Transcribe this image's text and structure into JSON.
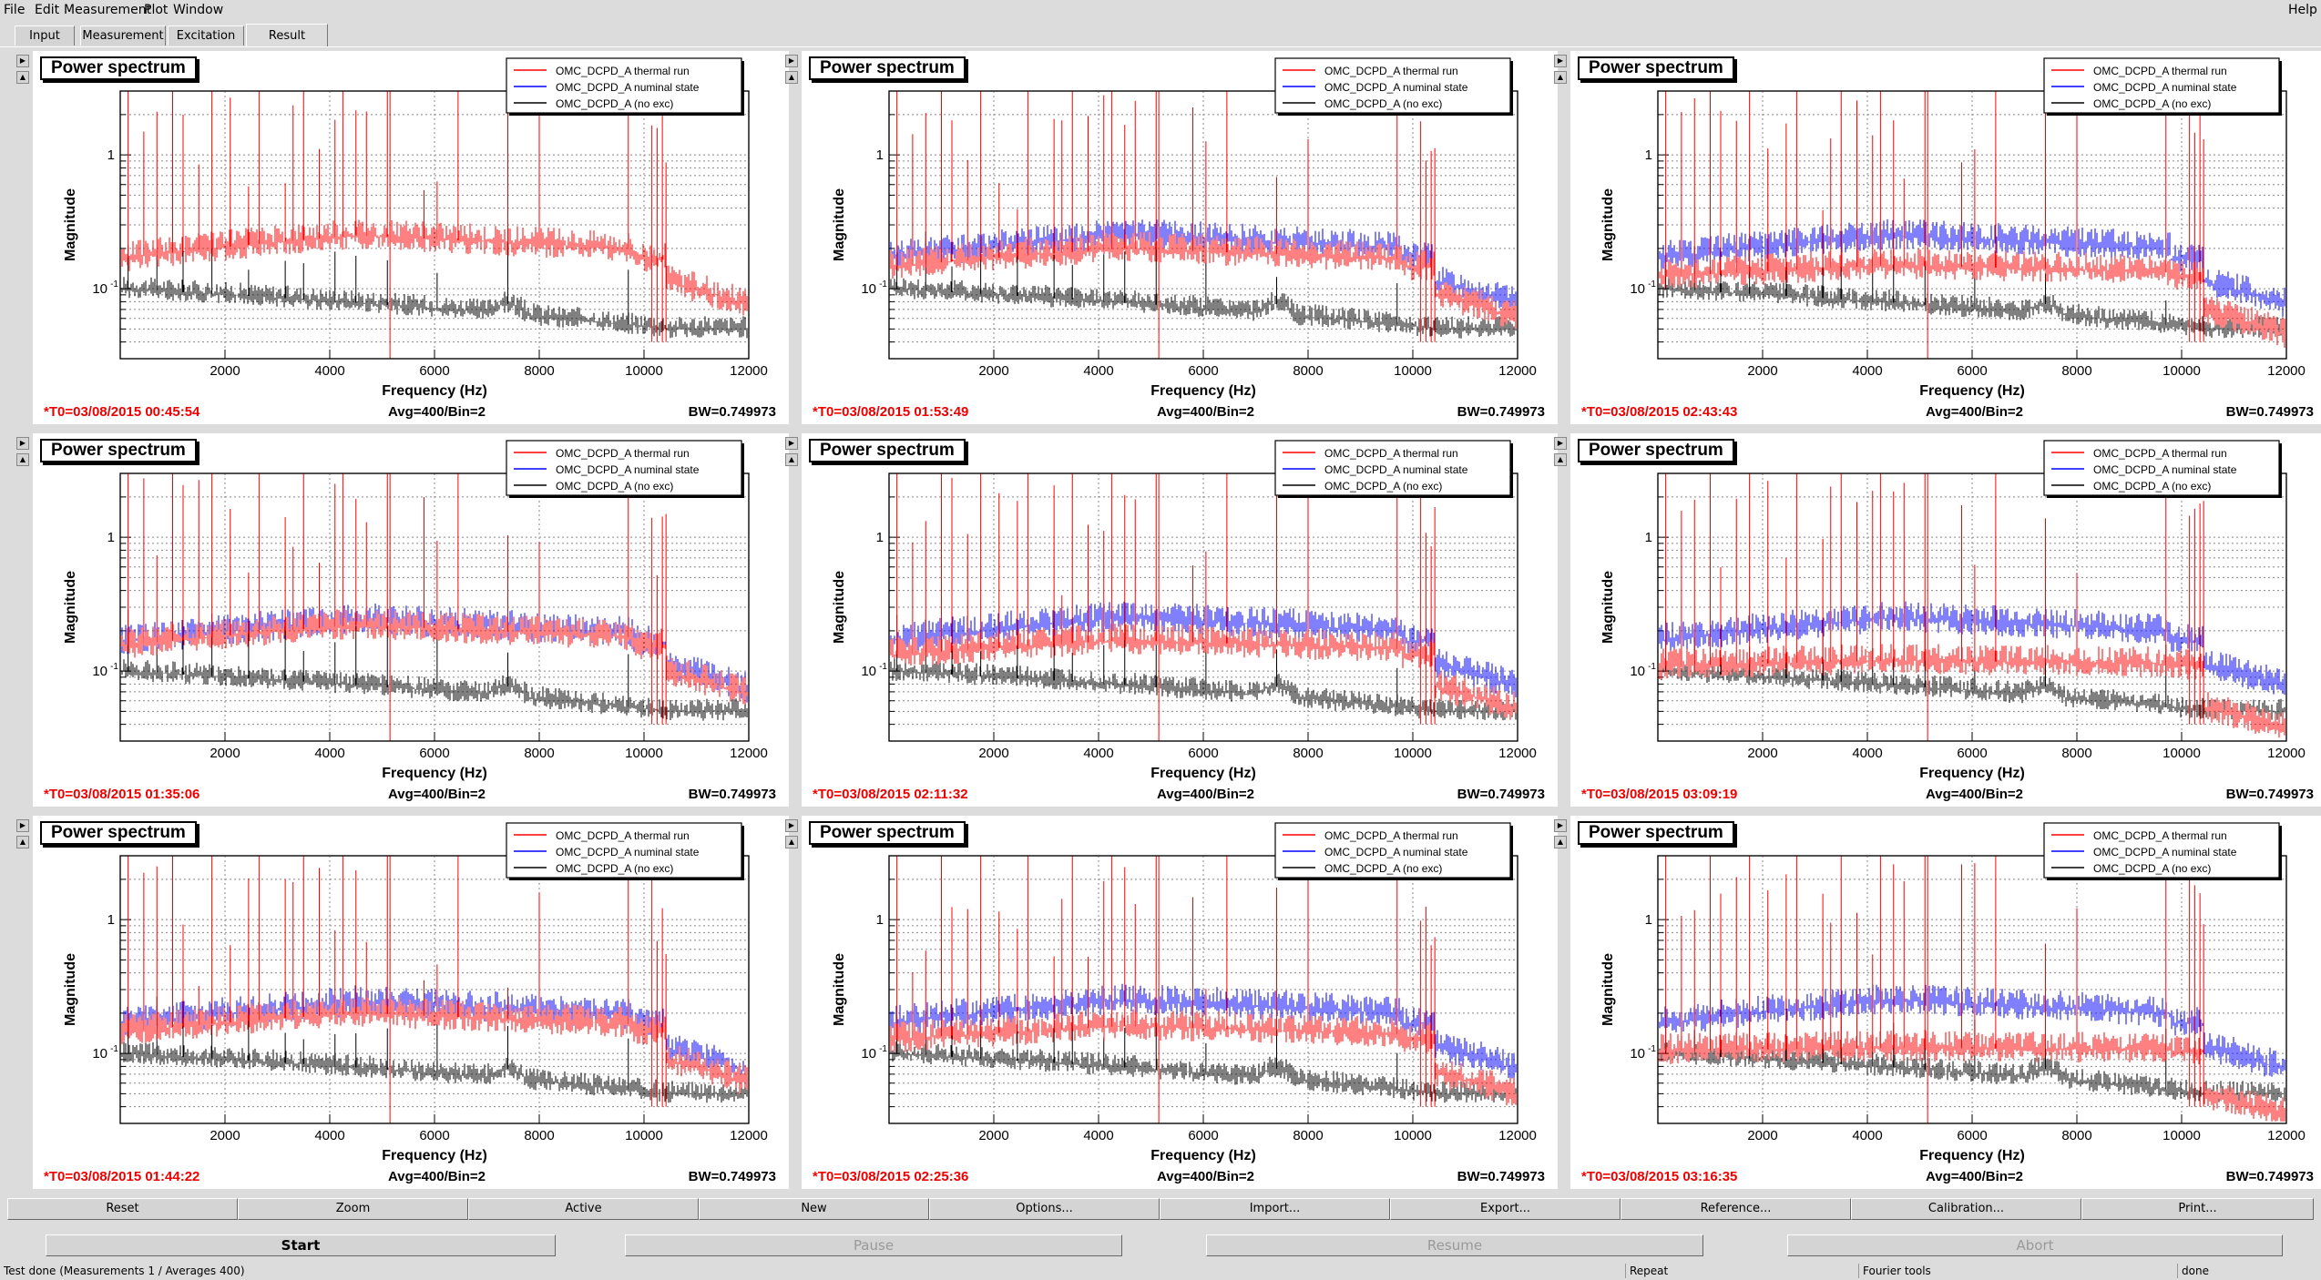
{
  "menu": {
    "file": "File",
    "edit": "Edit",
    "measurement": "Measurement",
    "plot": "Plot",
    "window": "Window",
    "help": "Help"
  },
  "tabs": [
    "Input",
    "Measurement",
    "Excitation",
    "Result"
  ],
  "active_tab": "Result",
  "colors": {
    "thermal": "#ff0000",
    "nominal": "#0000ff",
    "noexc": "#000000",
    "t0": "#ee0000"
  },
  "legend": {
    "thermal": "OMC_DCPD_A thermal run",
    "nominal": "OMC_DCPD_A numinal state",
    "noexc": "OMC_DCPD_A (no exc)"
  },
  "axes": {
    "xlabel": "Frequency (Hz)",
    "ylabel": "Magnitude",
    "xticks": [
      "2000",
      "4000",
      "6000",
      "8000",
      "10000",
      "12000"
    ],
    "ytick_1": "1",
    "ytick_01_base": "10",
    "ytick_01_exp": "-1"
  },
  "panels": [
    {
      "title": "Power spectrum",
      "t0": "*T0=03/08/2015 00:45:54",
      "avg": "Avg=400/Bin=2",
      "bw": "BW=0.749973",
      "show_nominal": false,
      "red_level": 0.25,
      "blue_level": 0.25
    },
    {
      "title": "Power spectrum",
      "t0": "*T0=03/08/2015 01:53:49",
      "avg": "Avg=400/Bin=2",
      "bw": "BW=0.749973",
      "show_nominal": true,
      "red_level": 0.2,
      "blue_level": 0.25
    },
    {
      "title": "Power spectrum",
      "t0": "*T0=03/08/2015 02:43:43",
      "avg": "Avg=400/Bin=2",
      "bw": "BW=0.749973",
      "show_nominal": true,
      "red_level": 0.15,
      "blue_level": 0.25
    },
    {
      "title": "Power spectrum",
      "t0": "*T0=03/08/2015 01:35:06",
      "avg": "Avg=400/Bin=2",
      "bw": "BW=0.749973",
      "show_nominal": true,
      "red_level": 0.22,
      "blue_level": 0.24
    },
    {
      "title": "Power spectrum",
      "t0": "*T0=03/08/2015 02:11:32",
      "avg": "Avg=400/Bin=2",
      "bw": "BW=0.749973",
      "show_nominal": true,
      "red_level": 0.17,
      "blue_level": 0.25
    },
    {
      "title": "Power spectrum",
      "t0": "*T0=03/08/2015 03:09:19",
      "avg": "Avg=400/Bin=2",
      "bw": "BW=0.749973",
      "show_nominal": true,
      "red_level": 0.12,
      "blue_level": 0.25
    },
    {
      "title": "Power spectrum",
      "t0": "*T0=03/08/2015 01:44:22",
      "avg": "Avg=400/Bin=2",
      "bw": "BW=0.749973",
      "show_nominal": true,
      "red_level": 0.2,
      "blue_level": 0.24
    },
    {
      "title": "Power spectrum",
      "t0": "*T0=03/08/2015 02:25:36",
      "avg": "Avg=400/Bin=2",
      "bw": "BW=0.749973",
      "show_nominal": true,
      "red_level": 0.16,
      "blue_level": 0.25
    },
    {
      "title": "Power spectrum",
      "t0": "*T0=03/08/2015 03:16:35",
      "avg": "Avg=400/Bin=2",
      "bw": "BW=0.749973",
      "show_nominal": true,
      "red_level": 0.11,
      "blue_level": 0.25
    }
  ],
  "chart_data": {
    "type": "line",
    "xlabel": "Frequency (Hz)",
    "ylabel": "Magnitude",
    "xlim": [
      0,
      12000
    ],
    "ylim": [
      0.03,
      3
    ],
    "yscale": "log",
    "grid": true,
    "legend_placement": "top-right",
    "series": [
      {
        "name": "OMC_DCPD_A thermal run"
      },
      {
        "name": "OMC_DCPD_A numinal state"
      },
      {
        "name": "OMC_DCPD_A (no exc)"
      }
    ]
  },
  "buttons": [
    "Reset",
    "Zoom",
    "Active",
    "New",
    "Options...",
    "Import...",
    "Export...",
    "Reference...",
    "Calibration...",
    "Print..."
  ],
  "controls": {
    "start": "Start",
    "pause": "Pause",
    "resume": "Resume",
    "abort": "Abort"
  },
  "status": {
    "message": "Test done (Measurements 1 / Averages 400)",
    "repeat": "Repeat",
    "tools": "Fourier tools",
    "state": "done"
  }
}
